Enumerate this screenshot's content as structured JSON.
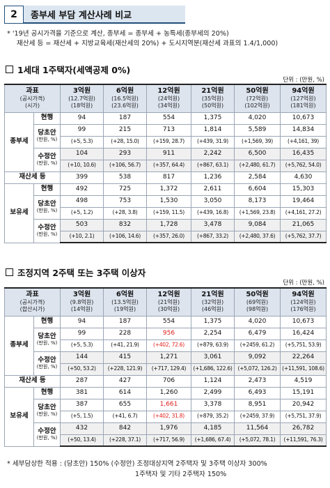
{
  "header": {
    "number": "2",
    "title": "종부세 부담 계산사례 비교"
  },
  "notes": [
    "* '19년 공시가격을 기준으로 계산, 종부세 = 종부세 + 농특세(종부세의 20%)",
    "재산세 등 = 재산세 + 지방교육세(재산세의 20%) + 도시지역분(재산세 과표의 1.4/1,000)"
  ],
  "unit": "단위 : (만원, %)",
  "table1": {
    "title": "1세대 1주택자(세액공제 0%)",
    "corner": {
      "l1": "과표",
      "l2": "(공시가격)",
      "l3": "(시가)"
    },
    "columns": [
      {
        "h": "3억원",
        "s1": "(12.7억원)",
        "s2": "(18억원)"
      },
      {
        "h": "6억원",
        "s1": "(16.5억원)",
        "s2": "(23.6억원)"
      },
      {
        "h": "12억원",
        "s1": "(24억원)",
        "s2": "(34억원)"
      },
      {
        "h": "21억원",
        "s1": "(35억원)",
        "s2": "(50억원)"
      },
      {
        "h": "50억원",
        "s1": "(72억원)",
        "s2": "(102억원)"
      },
      {
        "h": "94억원",
        "s1": "(127억원)",
        "s2": "(181억원)"
      }
    ],
    "groups": {
      "jongbu": "종부세",
      "jaesan": "재산세 등",
      "boyu": "보유세"
    },
    "labels": {
      "current": "현행",
      "party": "당초안",
      "revised": "수정안",
      "unit_sub": "(만원, %)"
    },
    "jongbu": {
      "current": [
        "94",
        "187",
        "554",
        "1,375",
        "4,020",
        "10,673"
      ],
      "party": [
        "99",
        "215",
        "713",
        "1,814",
        "5,589",
        "14,834"
      ],
      "party_delta": [
        "(+5, 5.3)",
        "(+28, 15.0)",
        "(+159, 28.7)",
        "(+439, 31.9)",
        "(+1,569, 39)",
        "(+4,161, 39)"
      ],
      "revised": [
        "104",
        "293",
        "911",
        "2,242",
        "6,500",
        "16,435"
      ],
      "revised_delta": [
        "(+10, 10.6)",
        "(+106, 56.7)",
        "(+357, 64.4)",
        "(+867, 63.1)",
        "(+2,480, 61.7)",
        "(+5,762, 54.0)"
      ]
    },
    "jaesan": [
      "399",
      "538",
      "817",
      "1,236",
      "2,584",
      "4,630"
    ],
    "boyu": {
      "current": [
        "492",
        "725",
        "1,372",
        "2,611",
        "6,604",
        "15,303"
      ],
      "party": [
        "498",
        "753",
        "1,530",
        "3,050",
        "8,173",
        "19,464"
      ],
      "party_delta": [
        "(+5, 1.2)",
        "(+28, 3.8)",
        "(+159, 11.5)",
        "(+439, 16.8)",
        "(+1,569, 23.8)",
        "(+4,161, 27.2)"
      ],
      "revised": [
        "503",
        "832",
        "1,728",
        "3,478",
        "9,084",
        "21,065"
      ],
      "revised_delta": [
        "(+10, 2.1)",
        "(+106, 14.6)",
        "(+357, 26.0)",
        "(+867, 33.2)",
        "(+2,480, 37.6)",
        "(+5,762, 37.7)"
      ]
    }
  },
  "table2": {
    "title": "조정지역 2주택 또는 3주택 이상자",
    "corner": {
      "l1": "과표",
      "l2": "(공시가격)",
      "l3": "(합산시가)"
    },
    "columns": [
      {
        "h": "3억원",
        "s1": "(9.8억원)",
        "s2": "(14억원)"
      },
      {
        "h": "6억원",
        "s1": "(13.5억원)",
        "s2": "(19억원)"
      },
      {
        "h": "12억원",
        "s1": "(21억원)",
        "s2": "(30억원)"
      },
      {
        "h": "21억원",
        "s1": "(32억원)",
        "s2": "(46억원)"
      },
      {
        "h": "50억원",
        "s1": "(69억원)",
        "s2": "(98억원)"
      },
      {
        "h": "94억원",
        "s1": "(124억원)",
        "s2": "(176억원)"
      }
    ],
    "jongbu": {
      "current": [
        "94",
        "187",
        "554",
        "1,375",
        "4,020",
        "10,673"
      ],
      "party": [
        "99",
        "228",
        "956",
        "2,254",
        "6,479",
        "16,424"
      ],
      "party_delta": [
        "(+5, 5.3)",
        "(+41, 21.9)",
        "(+402, 72.6)",
        "(+879, 63.9)",
        "(+2459, 61.2)",
        "(+5,751, 53.9)"
      ],
      "revised": [
        "144",
        "415",
        "1,271",
        "3,061",
        "9,092",
        "22,264"
      ],
      "revised_delta": [
        "(+50, 53.2)",
        "(+228, 121.9)",
        "(+717, 129.4)",
        "(+1,686, 122.6)",
        "(+5,072, 126.2)",
        "(+11,591, 108.6)"
      ]
    },
    "jaesan": [
      "287",
      "427",
      "706",
      "1,124",
      "2,473",
      "4,519"
    ],
    "boyu": {
      "current": [
        "381",
        "614",
        "1,260",
        "2,499",
        "6,493",
        "15,191"
      ],
      "party": [
        "387",
        "655",
        "1,661",
        "3,378",
        "8,951",
        "20,942"
      ],
      "party_delta": [
        "(+5, 1.5)",
        "(+41, 6.7)",
        "(+402, 31.8)",
        "(+879, 35.2)",
        "(+2459, 37.9)",
        "(+5,751, 37.9)"
      ],
      "revised": [
        "432",
        "842",
        "1,976",
        "4,185",
        "11,564",
        "26,782"
      ],
      "revised_delta": [
        "(+50, 13.4)",
        "(+228, 37.1)",
        "(+717, 56.9)",
        "(+1,686, 67.4)",
        "(+5,072, 78.1)",
        "(+11,591, 76.3)"
      ]
    },
    "highlight_color": "#e0201c"
  },
  "footer": [
    "* 세부담상한 적용 : (당초안) 150% (수정안) 조정대상지역 2주택자 및 3주택 이상자 300%",
    "1주택자 및 기타 2주택자 150%"
  ]
}
